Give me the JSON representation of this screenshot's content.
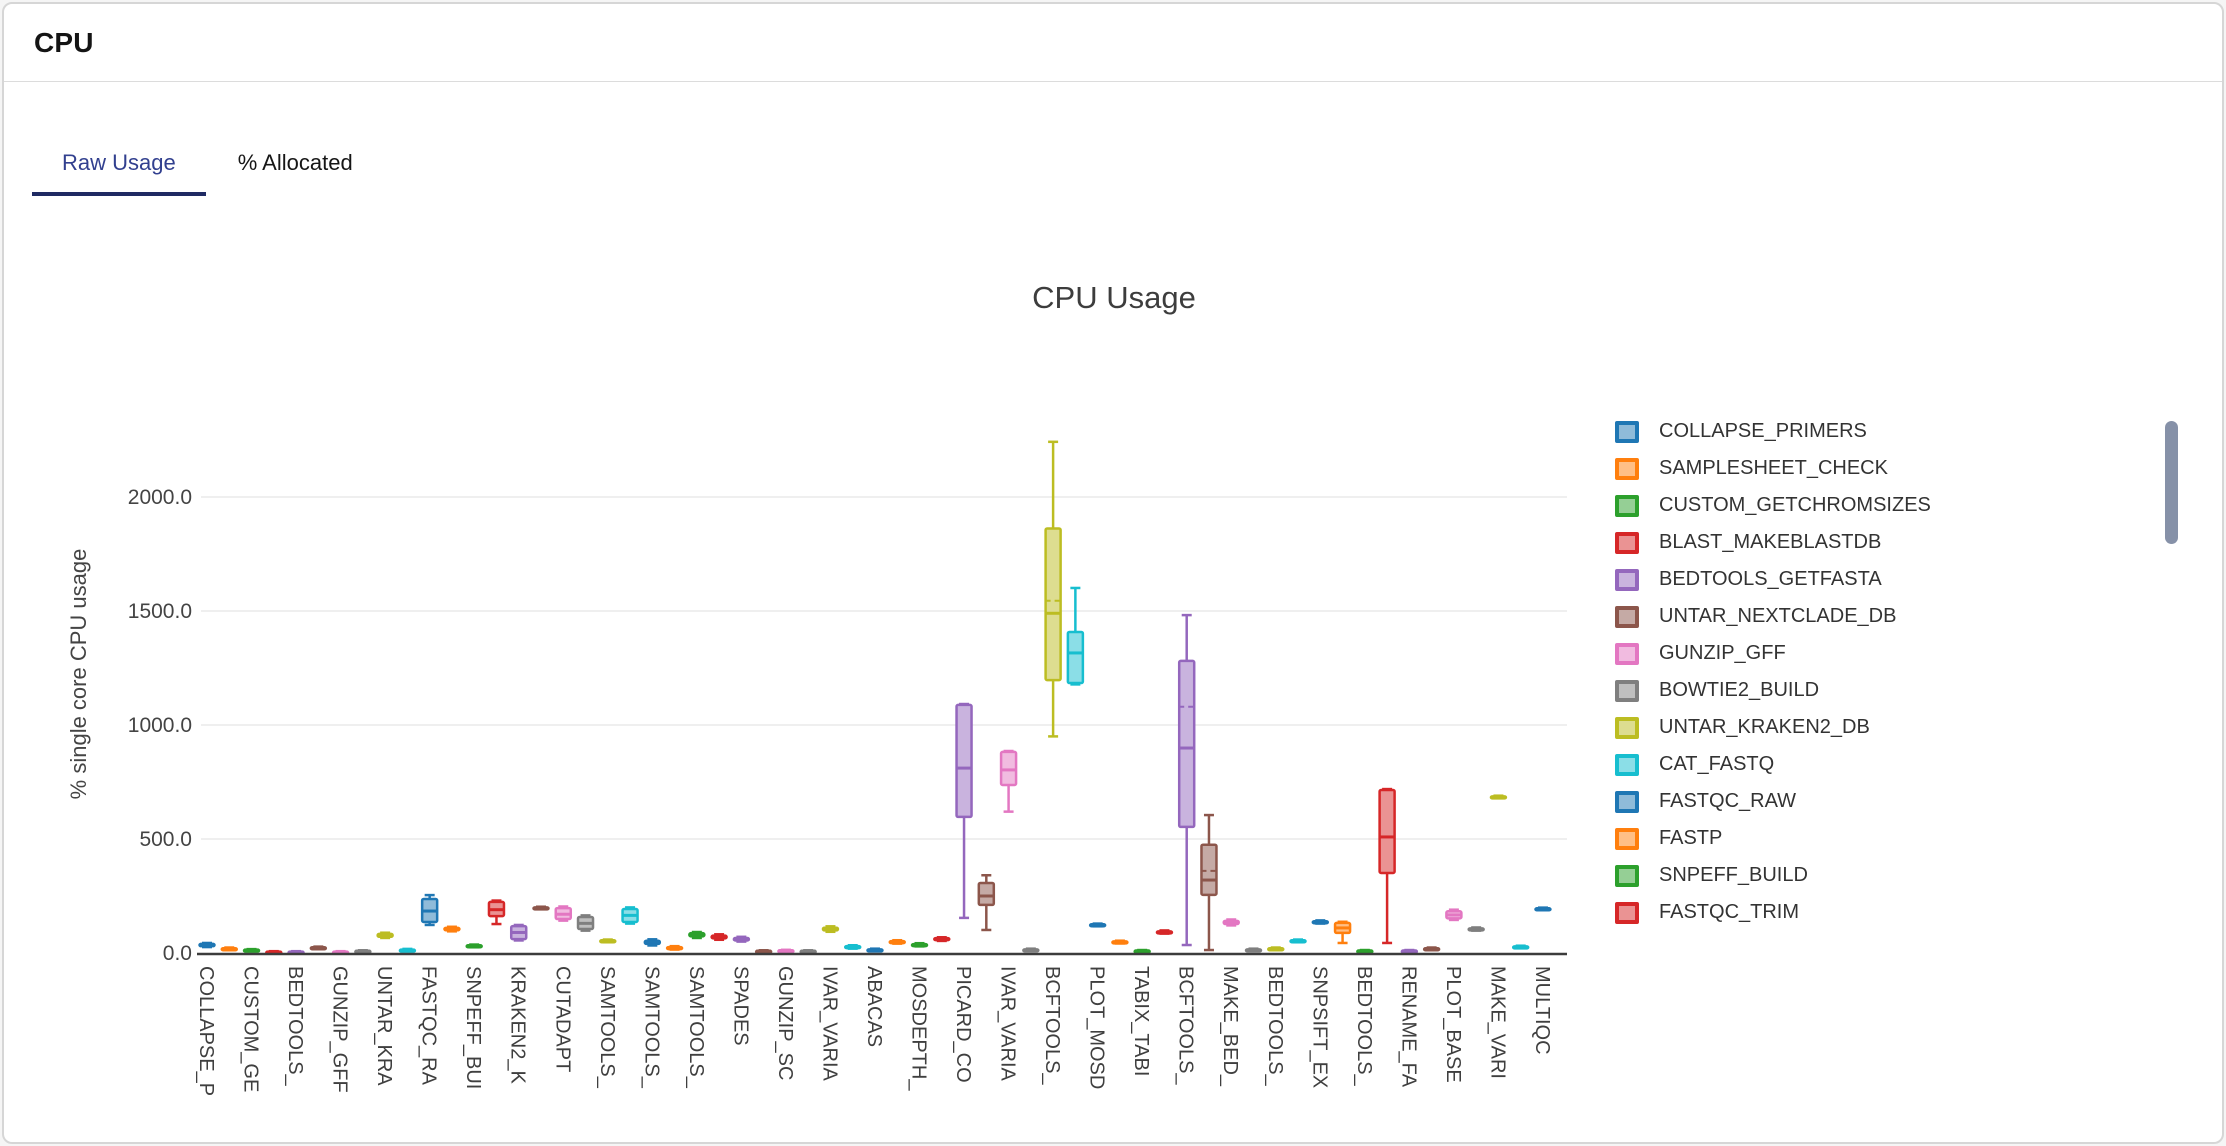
{
  "card": {
    "title": "CPU"
  },
  "tabs": {
    "active_label": "Raw Usage",
    "inactive_label": "% Allocated"
  },
  "colors": {
    "tab_active_text": "#32408f",
    "tab_underline": "#1f2a63",
    "card_border": "#d6d6d6",
    "axis_text": "#444444",
    "axis_line": "#3c3c3c",
    "gridline": "#eaeaea",
    "title_text": "#3d3d3d",
    "legend_text": "#333333",
    "scrollbar": "#8691a8"
  },
  "chart_data": {
    "type": "box",
    "title": "CPU Usage",
    "ylabel": "% single core CPU usage",
    "ytick_values": [
      0,
      500,
      1000,
      1500,
      2000
    ],
    "ytick_labels": [
      "0.0",
      "500.0",
      "1000.0",
      "1500.0",
      "2000.0"
    ],
    "ylim": [
      0,
      2350
    ],
    "grid": true,
    "legend_position": "right",
    "x_tick_labels": [
      "COLLAPSE_P",
      "CUSTOM_GE",
      "BEDTOOLS_",
      "GUNZIP_GFF",
      "UNTAR_KRA",
      "FASTQC_RA",
      "SNPEFF_BUI",
      "KRAKEN2_K",
      "CUTADAPT",
      "SAMTOOLS_",
      "SAMTOOLS_",
      "SAMTOOLS_",
      "SPADES",
      "GUNZIP_SC",
      "IVAR_VARIA",
      "ABACAS",
      "MOSDEPTH_",
      "PICARD_CO",
      "IVAR_VARIA",
      "BCFTOOLS_",
      "PLOT_MOSD",
      "TABIX_TABI",
      "BCFTOOLS_",
      "MAKE_BED_",
      "BEDTOOLS_",
      "SNPSIFT_EX",
      "BEDTOOLS_",
      "RENAME_FA",
      "PLOT_BASE",
      "MAKE_VARI",
      "MULTIQC"
    ],
    "x_tick_note": "one label per two boxes (every other box labelled)",
    "palette": [
      {
        "stroke": "#1f77b4",
        "fill": "#8fbbd9"
      },
      {
        "stroke": "#ff7f0e",
        "fill": "#ffbf86"
      },
      {
        "stroke": "#2ca02c",
        "fill": "#95cf95"
      },
      {
        "stroke": "#d62728",
        "fill": "#ea9393"
      },
      {
        "stroke": "#9467bd",
        "fill": "#c9b3de"
      },
      {
        "stroke": "#8c564b",
        "fill": "#c5aaa5"
      },
      {
        "stroke": "#e377c2",
        "fill": "#f1bbe0"
      },
      {
        "stroke": "#7f7f7f",
        "fill": "#bfbfbf"
      },
      {
        "stroke": "#bcbd22",
        "fill": "#dddd90"
      },
      {
        "stroke": "#17becf",
        "fill": "#8bdee7"
      }
    ],
    "boxes_format": "[whisker_low, q1, median, q3, whisker_high, optional_mean] in % single core CPU usage; color = palette[index mod 10]",
    "boxes": [
      [
        26,
        30,
        35,
        40,
        44
      ],
      [
        13,
        16,
        18,
        21,
        24
      ],
      [
        9,
        11,
        13,
        15,
        17
      ],
      [
        2,
        3,
        4,
        6,
        8
      ],
      [
        2,
        3,
        4,
        6,
        8
      ],
      [
        17,
        20,
        22,
        25,
        28
      ],
      [
        2,
        3,
        4,
        6,
        8
      ],
      [
        4,
        6,
        8,
        10,
        12
      ],
      [
        66,
        71,
        78,
        84,
        89
      ],
      [
        8,
        11,
        13,
        15,
        18
      ],
      [
        123,
        136,
        184,
        237,
        254
      ],
      [
        95,
        100,
        105,
        110,
        115
      ],
      [
        25,
        28,
        31,
        34,
        37
      ],
      [
        127,
        162,
        190,
        224,
        230
      ],
      [
        55,
        61,
        90,
        118,
        123
      ],
      [
        192,
        195,
        197,
        200,
        203
      ],
      [
        142,
        149,
        170,
        197,
        204
      ],
      [
        98,
        105,
        130,
        158,
        165
      ],
      [
        47,
        50,
        53,
        56,
        59
      ],
      [
        129,
        136,
        165,
        193,
        200
      ],
      [
        33,
        40,
        48,
        54,
        60
      ],
      [
        15,
        18,
        22,
        26,
        30
      ],
      [
        66,
        73,
        80,
        87,
        92
      ],
      [
        58,
        64,
        70,
        76,
        82
      ],
      [
        50,
        55,
        61,
        66,
        71
      ],
      [
        4,
        6,
        8,
        10,
        12
      ],
      [
        6,
        8,
        10,
        12,
        14
      ],
      [
        4,
        6,
        8,
        10,
        12
      ],
      [
        93,
        99,
        105,
        111,
        117
      ],
      [
        19,
        23,
        26,
        30,
        34
      ],
      [
        8,
        11,
        13,
        16,
        19
      ],
      [
        41,
        44,
        48,
        52,
        56
      ],
      [
        29,
        32,
        35,
        39,
        43
      ],
      [
        53,
        57,
        61,
        65,
        69
      ],
      [
        154,
        597,
        811,
        1088,
        1092
      ],
      [
        101,
        211,
        250,
        307,
        341
      ],
      [
        620,
        737,
        803,
        882,
        886
      ],
      [
        8,
        11,
        13,
        16,
        19
      ],
      [
        950,
        1197,
        1490,
        1862,
        2242,
        1545
      ],
      [
        1178,
        1184,
        1316,
        1408,
        1601
      ],
      [
        117,
        120,
        123,
        126,
        129
      ],
      [
        42,
        45,
        48,
        51,
        54
      ],
      [
        5,
        7,
        9,
        11,
        13
      ],
      [
        85,
        89,
        92,
        95,
        99
      ],
      [
        35,
        553,
        899,
        1281,
        1482,
        1080
      ],
      [
        13,
        255,
        320,
        475,
        605,
        360
      ],
      [
        121,
        127,
        133,
        141,
        147
      ],
      [
        8,
        11,
        13,
        16,
        19
      ],
      [
        13,
        16,
        18,
        21,
        24
      ],
      [
        47,
        50,
        53,
        56,
        59
      ],
      [
        129,
        133,
        136,
        139,
        143
      ],
      [
        44,
        88,
        110,
        132,
        137
      ],
      [
        5,
        7,
        9,
        11,
        13
      ],
      [
        44,
        351,
        509,
        715,
        719
      ],
      [
        5,
        7,
        9,
        11,
        13
      ],
      [
        13,
        16,
        18,
        21,
        24
      ],
      [
        145,
        152,
        167,
        183,
        190
      ],
      [
        98,
        102,
        105,
        108,
        112
      ],
      [
        679,
        682,
        684,
        687,
        690
      ],
      [
        21,
        24,
        26,
        29,
        32
      ],
      [
        188,
        191,
        193,
        196,
        199
      ]
    ],
    "legend_entries": [
      "COLLAPSE_PRIMERS",
      "SAMPLESHEET_CHECK",
      "CUSTOM_GETCHROMSIZES",
      "BLAST_MAKEBLASTDB",
      "BEDTOOLS_GETFASTA",
      "UNTAR_NEXTCLADE_DB",
      "GUNZIP_GFF",
      "BOWTIE2_BUILD",
      "UNTAR_KRAKEN2_DB",
      "CAT_FASTQ",
      "FASTQC_RAW",
      "FASTP",
      "SNPEFF_BUILD",
      "FASTQC_TRIM"
    ]
  }
}
